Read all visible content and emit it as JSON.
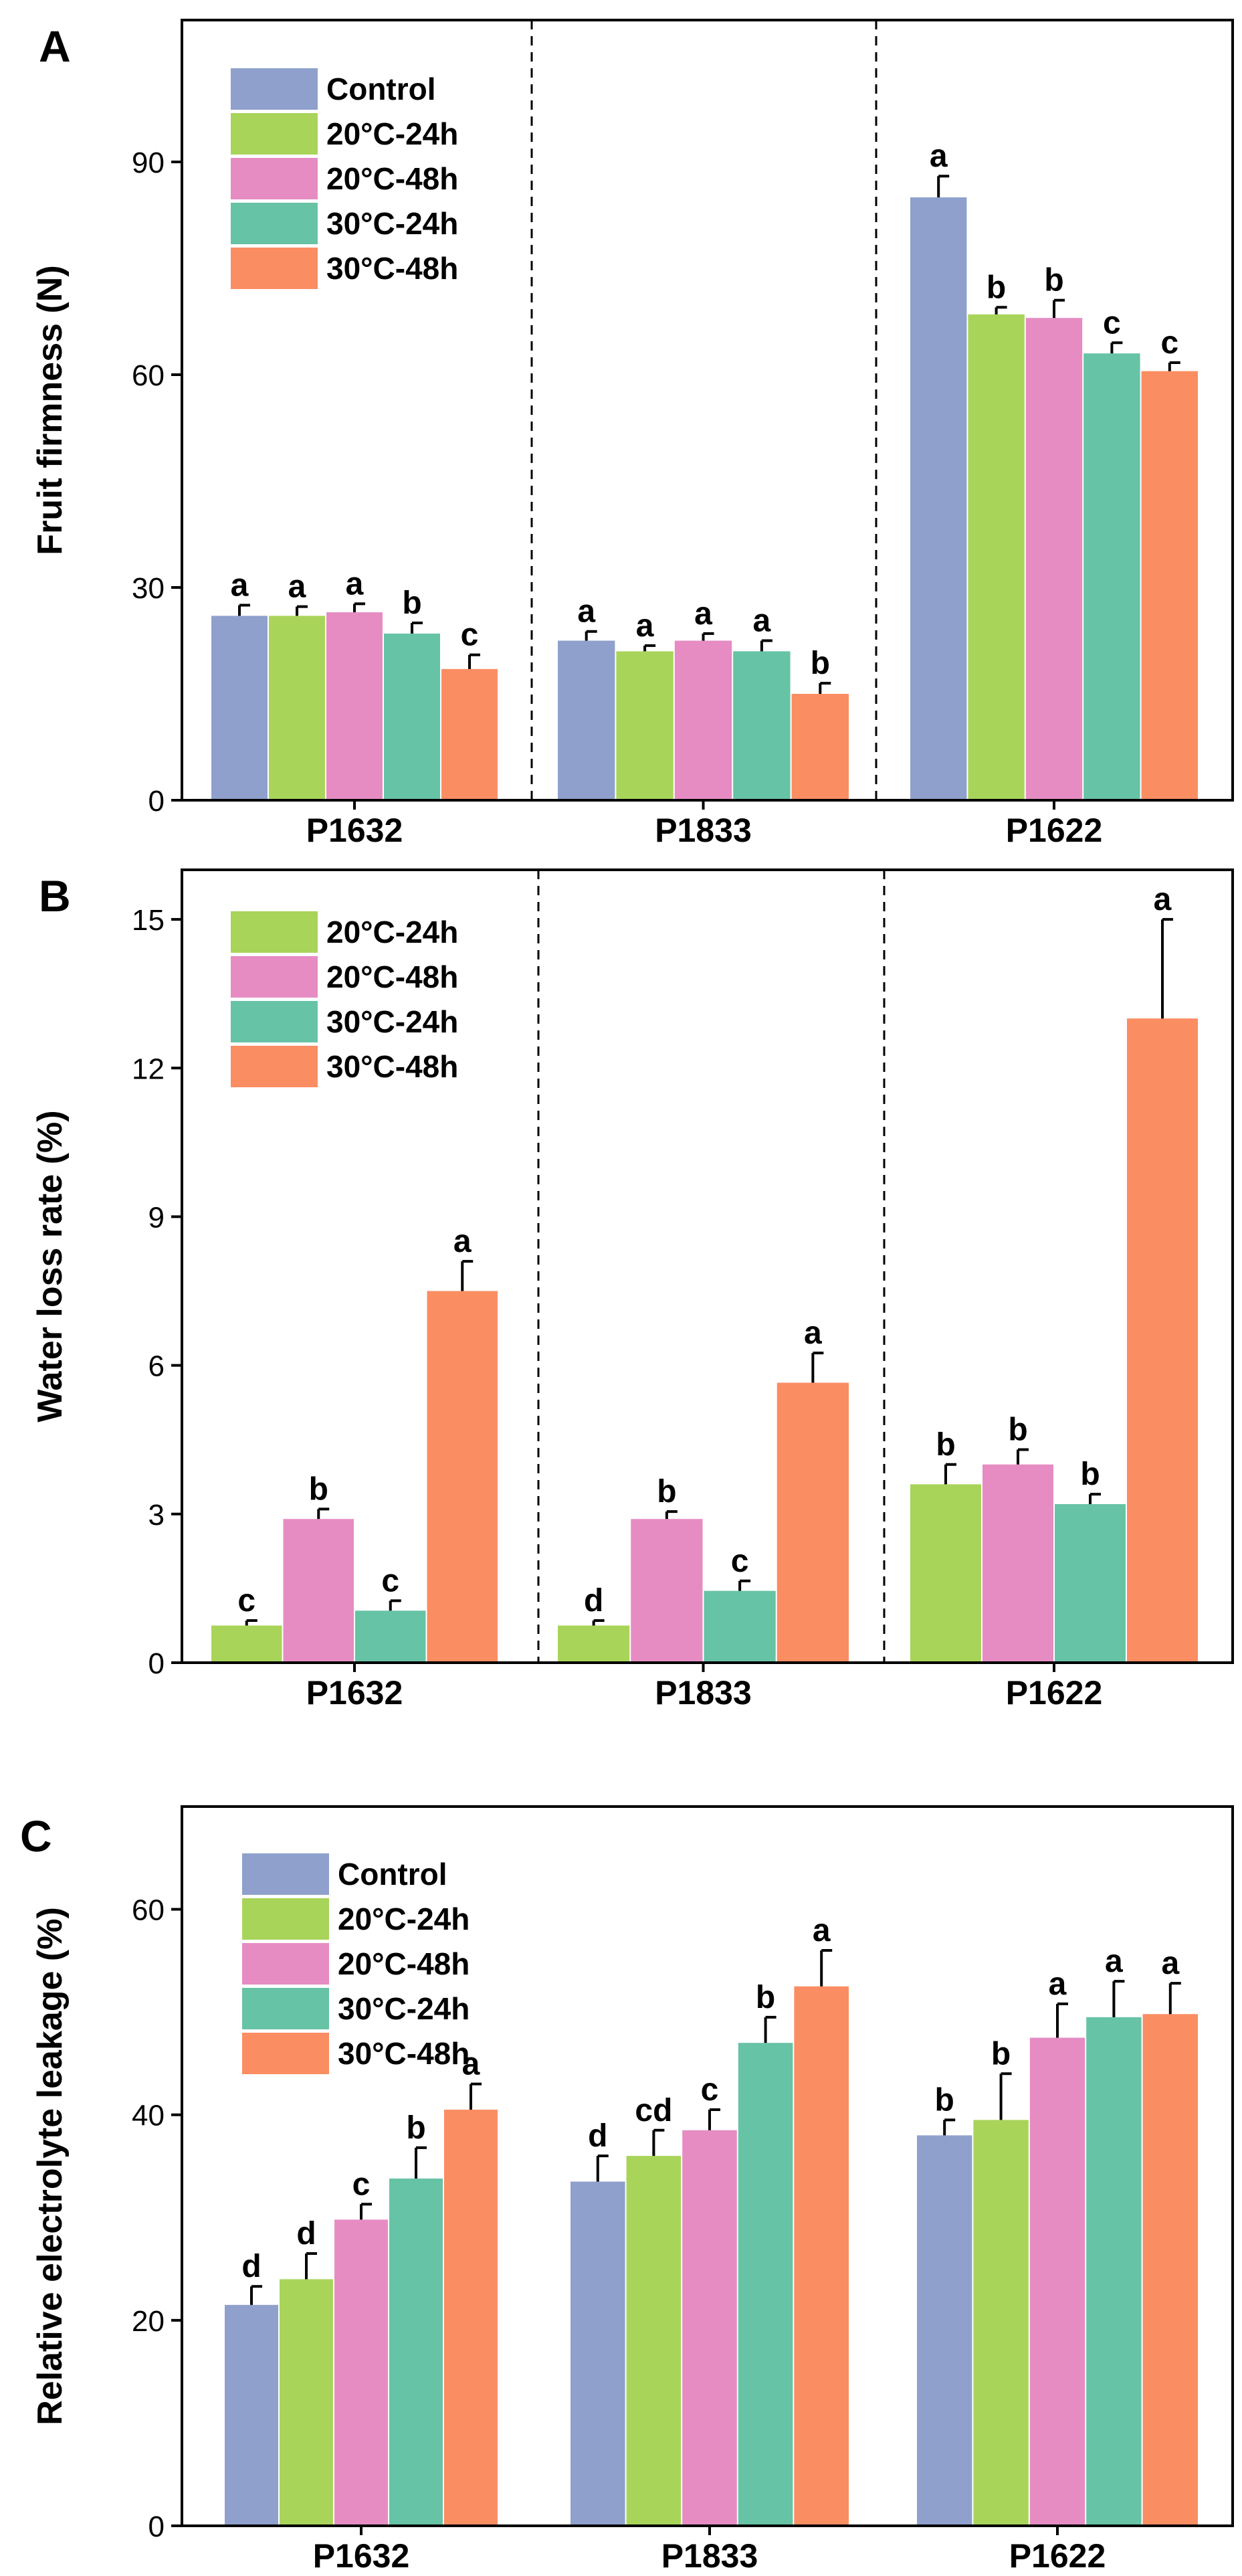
{
  "colors": {
    "Control": "#8fa0cc",
    "20°C-24h": "#a9d45a",
    "20°C-48h": "#e68cc3",
    "30°C-24h": "#67c3a5",
    "30°C-48h": "#fb8d62"
  },
  "chart_data": [
    {
      "panel": "A",
      "type": "bar",
      "ylabel": "Fruit firmness (N)",
      "ylim": [
        0,
        110
      ],
      "yticks": [
        0,
        30,
        60,
        90
      ],
      "categories": [
        "P1632",
        "P1833",
        "P1622"
      ],
      "legend": [
        "Control",
        "20°C-24h",
        "20°C-48h",
        "30°C-24h",
        "30°C-48h"
      ],
      "legend_position": "top-left",
      "series": [
        {
          "name": "Control",
          "values": [
            26,
            22.5,
            85
          ],
          "errors": [
            1.5,
            1.3,
            3
          ],
          "letters": [
            "a",
            "a",
            "a"
          ]
        },
        {
          "name": "20°C-24h",
          "values": [
            26,
            21,
            68.5
          ],
          "errors": [
            1.3,
            0.8,
            1
          ],
          "letters": [
            "a",
            "a",
            "b"
          ]
        },
        {
          "name": "20°C-48h",
          "values": [
            26.5,
            22.5,
            68
          ],
          "errors": [
            1.2,
            1,
            2.5
          ],
          "letters": [
            "a",
            "a",
            "b"
          ]
        },
        {
          "name": "30°C-24h",
          "values": [
            23.5,
            21,
            63
          ],
          "errors": [
            1.5,
            1.5,
            1.5
          ],
          "letters": [
            "b",
            "a",
            "c"
          ]
        },
        {
          "name": "30°C-48h",
          "values": [
            18.5,
            15,
            60.5
          ],
          "errors": [
            2,
            1.5,
            1.2
          ],
          "letters": [
            "c",
            "b",
            "c"
          ]
        }
      ]
    },
    {
      "panel": "B",
      "type": "bar",
      "ylabel": "Water loss rate (%)",
      "ylim": [
        0,
        16
      ],
      "yticks": [
        0,
        3,
        6,
        9,
        12,
        15
      ],
      "categories": [
        "P1632",
        "P1833",
        "P1622"
      ],
      "legend": [
        "20°C-24h",
        "20°C-48h",
        "30°C-24h",
        "30°C-48h"
      ],
      "legend_position": "top-left",
      "series": [
        {
          "name": "20°C-24h",
          "values": [
            0.75,
            0.75,
            3.6
          ],
          "errors": [
            0.1,
            0.1,
            0.4
          ],
          "letters": [
            "c",
            "d",
            "b"
          ]
        },
        {
          "name": "20°C-48h",
          "values": [
            2.9,
            2.9,
            4
          ],
          "errors": [
            0.2,
            0.15,
            0.3
          ],
          "letters": [
            "b",
            "b",
            "b"
          ]
        },
        {
          "name": "30°C-24h",
          "values": [
            1.05,
            1.45,
            3.2
          ],
          "errors": [
            0.2,
            0.2,
            0.2
          ],
          "letters": [
            "c",
            "c",
            "b"
          ]
        },
        {
          "name": "30°C-48h",
          "values": [
            7.5,
            5.65,
            13
          ],
          "errors": [
            0.6,
            0.6,
            2
          ],
          "letters": [
            "a",
            "a",
            "a"
          ]
        }
      ]
    },
    {
      "panel": "C",
      "type": "bar",
      "ylabel": "Relative electrolyte leakage (%)",
      "ylim": [
        0,
        70
      ],
      "yticks": [
        0,
        20,
        40,
        60
      ],
      "categories": [
        "P1632",
        "P1833",
        "P1622"
      ],
      "legend": [
        "Control",
        "20°C-24h",
        "20°C-48h",
        "30°C-24h",
        "30°C-48h"
      ],
      "legend_position": "top-left",
      "series": [
        {
          "name": "Control",
          "values": [
            21.5,
            33.5,
            38
          ],
          "errors": [
            1.8,
            2.5,
            1.5
          ],
          "letters": [
            "d",
            "d",
            "b"
          ]
        },
        {
          "name": "20°C-24h",
          "values": [
            24,
            36,
            39.5
          ],
          "errors": [
            2.5,
            2.5,
            4.5
          ],
          "letters": [
            "d",
            "cd",
            "b"
          ]
        },
        {
          "name": "20°C-48h",
          "values": [
            29.8,
            38.5,
            47.5
          ],
          "errors": [
            1.5,
            2,
            3.3
          ],
          "letters": [
            "c",
            "c",
            "a"
          ]
        },
        {
          "name": "30°C-24h",
          "values": [
            33.8,
            47,
            49.5
          ],
          "errors": [
            3,
            2.5,
            3.5
          ],
          "letters": [
            "b",
            "b",
            "a"
          ]
        },
        {
          "name": "30°C-48h",
          "values": [
            40.5,
            52.5,
            49.8
          ],
          "errors": [
            2.5,
            3.5,
            3
          ],
          "letters": [
            "a",
            "a",
            "a"
          ]
        }
      ]
    }
  ]
}
